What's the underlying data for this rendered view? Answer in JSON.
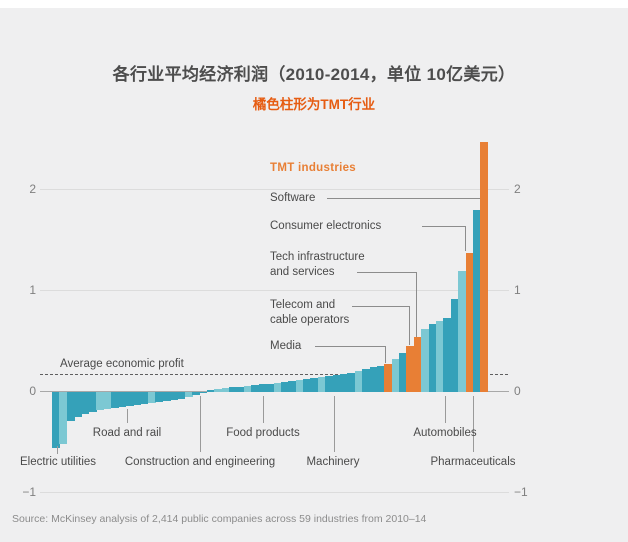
{
  "title": "各行业平均经济利润（2010-2014，单位 10亿美元）",
  "subtitle": "橘色柱形为TMT行业",
  "source": "Source: McKinsey analysis of 2,414 public companies across 59 industries from 2010–14",
  "average_label": "Average economic profit",
  "chart_data": {
    "type": "bar",
    "title": "各行业平均经济利润（2010-2014，单位 10亿美元）",
    "subtitle": "橘色柱形为TMT行业",
    "unit_note": "10亿美元 (USD billions)",
    "ylim": [
      -1,
      2.6
    ],
    "yticks": [
      2,
      1,
      0,
      -1
    ],
    "ytick_labels": [
      "2",
      "1",
      "0",
      "−1"
    ],
    "grid": "horizontal",
    "n_bars": 59,
    "average_line": {
      "value": 0.17,
      "label": "Average economic profit"
    },
    "legend": {
      "label": "TMT industries",
      "color": "#e87f35"
    },
    "colors": {
      "t": "#35a1b9",
      "l": "#7cc8d3",
      "o": "#e87f35"
    },
    "values": [
      -0.55,
      -0.51,
      -0.29,
      -0.25,
      -0.22,
      -0.2,
      -0.18,
      -0.17,
      -0.16,
      -0.15,
      -0.14,
      -0.13,
      -0.12,
      -0.11,
      -0.1,
      -0.09,
      -0.08,
      -0.07,
      -0.05,
      -0.03,
      -0.01,
      0.02,
      0.03,
      0.04,
      0.05,
      0.05,
      0.06,
      0.07,
      0.08,
      0.08,
      0.09,
      0.1,
      0.11,
      0.12,
      0.13,
      0.14,
      0.15,
      0.16,
      0.17,
      0.18,
      0.19,
      0.21,
      0.23,
      0.25,
      0.26,
      0.28,
      0.33,
      0.39,
      0.46,
      0.54,
      0.62,
      0.67,
      0.7,
      0.73,
      0.92,
      1.2,
      1.38,
      1.8,
      2.48
    ],
    "shades": [
      "t",
      "l",
      "t",
      "t",
      "t",
      "t",
      "l",
      "l",
      "t",
      "t",
      "t",
      "t",
      "t",
      "l",
      "t",
      "t",
      "t",
      "t",
      "l",
      "t",
      "t",
      "t",
      "l",
      "l",
      "t",
      "t",
      "l",
      "t",
      "t",
      "t",
      "l",
      "t",
      "t",
      "l",
      "t",
      "t",
      "l",
      "t",
      "t",
      "t",
      "t",
      "l",
      "t",
      "t",
      "t",
      "o",
      "l",
      "t",
      "o",
      "o",
      "l",
      "t",
      "l",
      "t",
      "t",
      "l",
      "o",
      "t",
      "o"
    ],
    "tmt_callouts": [
      {
        "label": "Software",
        "lines": [
          "Software"
        ],
        "bar": 59,
        "value": 2.48
      },
      {
        "label": "Consumer electronics",
        "lines": [
          "Consumer electronics"
        ],
        "bar": 57,
        "value": 1.38
      },
      {
        "label": "Tech infrastructure and services",
        "lines": [
          "Tech infrastructure",
          "and services"
        ],
        "bar": 50,
        "value": 0.54
      },
      {
        "label": "Telecom and cable operators",
        "lines": [
          "Telecom and",
          "cable operators"
        ],
        "bar": 49,
        "value": 0.46
      },
      {
        "label": "Media",
        "lines": [
          "Media"
        ],
        "bar": 46,
        "value": 0.28
      }
    ],
    "industry_labels": [
      {
        "label": "Electric utilities",
        "bar": 1,
        "value": -0.55
      },
      {
        "label": "Road and rail",
        "bar": 11,
        "value": -0.14
      },
      {
        "label": "Construction and engineering",
        "bar": 21,
        "value": -0.01
      },
      {
        "label": "Food products",
        "bar": 29,
        "value": 0.08
      },
      {
        "label": "Machinery",
        "bar": 39,
        "value": 0.17
      },
      {
        "label": "Automobiles",
        "bar": 54,
        "value": 0.73
      },
      {
        "label": "Pharmaceuticals",
        "bar": 58,
        "value": 1.8
      }
    ]
  }
}
